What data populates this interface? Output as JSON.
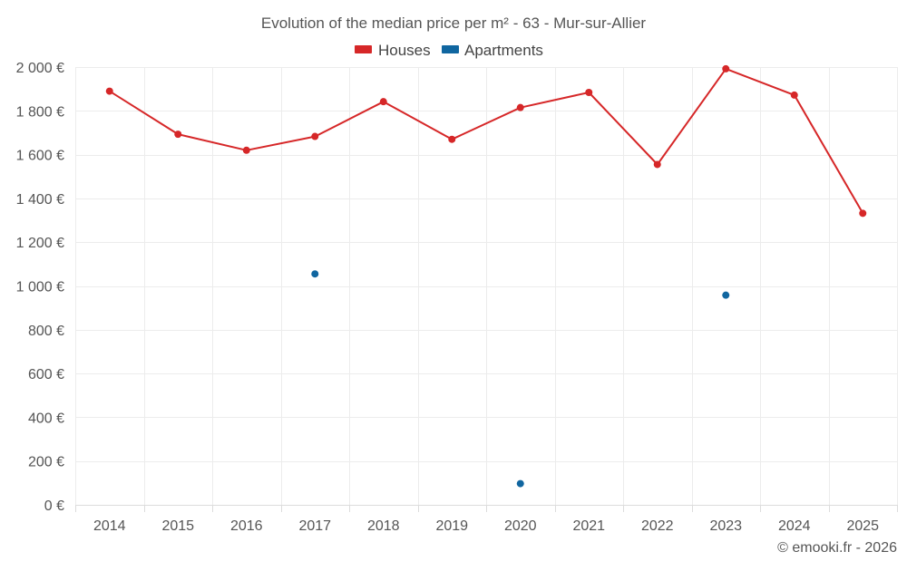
{
  "chart_data": {
    "type": "line",
    "title": "Evolution of the median price per m² - 63 - Mur-sur-Allier",
    "categories": [
      "2014",
      "2015",
      "2016",
      "2017",
      "2018",
      "2019",
      "2020",
      "2021",
      "2022",
      "2023",
      "2024",
      "2025"
    ],
    "ylim": [
      0,
      2000
    ],
    "yticks": [
      0,
      200,
      400,
      600,
      800,
      1000,
      1200,
      1400,
      1600,
      1800,
      2000
    ],
    "ytick_labels": [
      "0 €",
      "200 €",
      "400 €",
      "600 €",
      "800 €",
      "1 000 €",
      "1 200 €",
      "1 400 €",
      "1 600 €",
      "1 800 €",
      "2 000 €"
    ],
    "xlabel": "",
    "ylabel": "",
    "grid": true,
    "legend_position": "top-center",
    "series": [
      {
        "name": "Houses",
        "color": "#d62728",
        "style": "line",
        "values": [
          1890,
          1693,
          1620,
          1683,
          1842,
          1670,
          1815,
          1884,
          1555,
          1992,
          1872,
          1332
        ]
      },
      {
        "name": "Apartments",
        "color": "#1066a0",
        "style": "points",
        "values": [
          null,
          null,
          null,
          1055,
          null,
          null,
          97,
          null,
          null,
          958,
          null,
          null
        ]
      }
    ],
    "credit": "© emooki.fr - 2026"
  }
}
